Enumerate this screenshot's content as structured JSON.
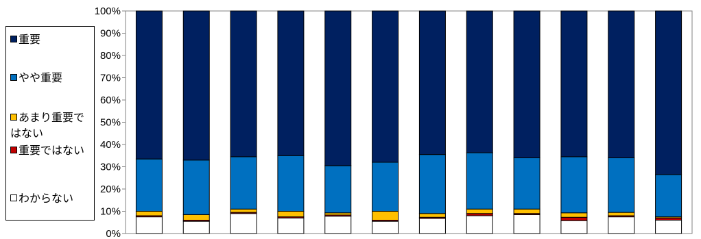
{
  "chart_data": {
    "type": "bar",
    "stacked": true,
    "percent": true,
    "ylim": [
      0,
      100
    ],
    "yticks": [
      "0%",
      "10%",
      "20%",
      "30%",
      "40%",
      "50%",
      "60%",
      "70%",
      "80%",
      "90%",
      "100%"
    ],
    "grid": false,
    "legend_position": "left",
    "categories": [
      "",
      "",
      "",
      "",
      "",
      "",
      "",
      "",
      "",
      "",
      "",
      ""
    ],
    "series": [
      {
        "name": "わからない",
        "color": "#ffffff",
        "values": [
          7.5,
          5.5,
          9.0,
          7.0,
          7.8,
          5.5,
          6.8,
          8.0,
          8.5,
          5.8,
          7.5,
          6.0
        ]
      },
      {
        "name": "重要ではない",
        "color": "#c00000",
        "values": [
          0.5,
          0.5,
          0.5,
          0.5,
          0.5,
          0.5,
          0.5,
          1.0,
          0.5,
          1.5,
          0.5,
          1.0
        ]
      },
      {
        "name": "あまり重要ではない",
        "color": "#ffc000",
        "values": [
          2.0,
          2.5,
          1.5,
          2.5,
          1.0,
          4.0,
          1.7,
          2.0,
          2.0,
          2.0,
          1.5,
          0.5
        ]
      },
      {
        "name": "やや重要",
        "color": "#0070c0",
        "values": [
          23.5,
          24.5,
          23.5,
          25.0,
          21.2,
          22.0,
          26.5,
          25.3,
          23.0,
          25.2,
          24.5,
          19.0
        ]
      },
      {
        "name": "重要",
        "color": "#002060",
        "values": [
          66.5,
          67.0,
          65.5,
          65.0,
          69.5,
          68.0,
          64.5,
          63.7,
          66.0,
          65.5,
          66.0,
          73.5
        ]
      }
    ],
    "legend": [
      {
        "name": "重要",
        "color": "#002060"
      },
      {
        "name": "やや重要",
        "color": "#0070c0"
      },
      {
        "name": "あまり重要ではない",
        "color": "#ffc000"
      },
      {
        "name": "重要ではない",
        "color": "#c00000"
      },
      {
        "name": "わからない",
        "color": "#ffffff"
      }
    ]
  }
}
